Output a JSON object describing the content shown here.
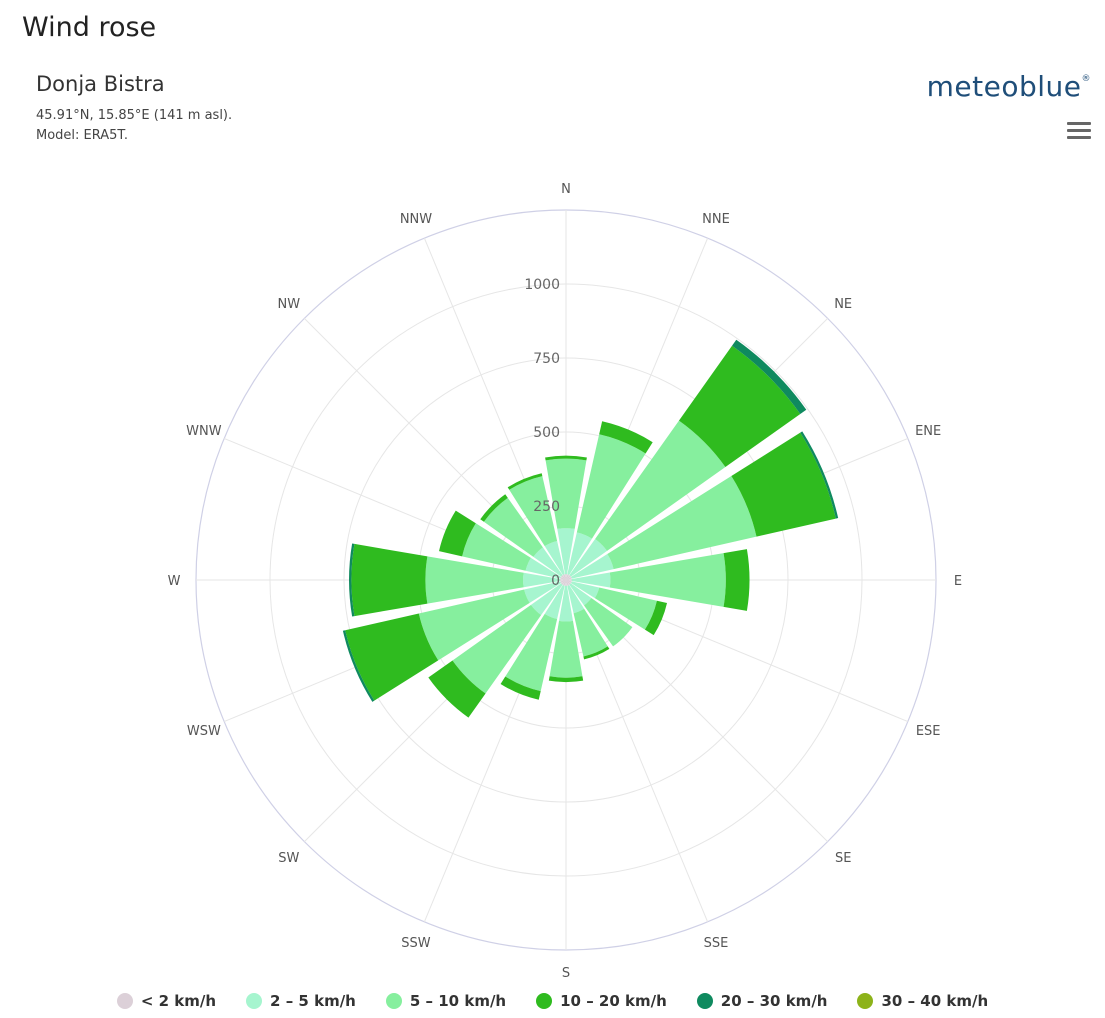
{
  "page_title": "Wind rose",
  "location": {
    "name": "Donja Bistra",
    "coords": "45.91°N, 15.85°E (141 m asl).",
    "model": "Model: ERA5T."
  },
  "brand": {
    "name": "meteoblue",
    "mark": "®"
  },
  "menu_icon": "hamburger-menu-icon",
  "chart_data": {
    "type": "wind-rose",
    "title": "",
    "radial_axis": {
      "min": 0,
      "max": 1250,
      "ticks": [
        0,
        250,
        500,
        750,
        1000
      ],
      "tick_labels": [
        "0",
        "250",
        "500",
        "750",
        "1000"
      ]
    },
    "directions": [
      "N",
      "NNE",
      "NE",
      "ENE",
      "E",
      "ESE",
      "SE",
      "SSE",
      "S",
      "SSW",
      "SW",
      "WSW",
      "W",
      "WNW",
      "NW",
      "NNW"
    ],
    "series": [
      {
        "name": "< 2 km/h",
        "color": "#dcd0d8",
        "values": [
          20,
          20,
          20,
          20,
          20,
          20,
          20,
          20,
          20,
          20,
          20,
          20,
          20,
          20,
          20,
          20
        ]
      },
      {
        "name": "2 – 5 km/h",
        "color": "#a6f5cf",
        "values": [
          155,
          145,
          150,
          145,
          130,
          95,
          85,
          95,
          120,
          115,
          125,
          125,
          125,
          120,
          115,
          115
        ]
      },
      {
        "name": "5 – 10 km/h",
        "color": "#86ef9e",
        "values": [
          235,
          340,
          490,
          495,
          390,
          200,
          170,
          150,
          190,
          250,
          325,
          365,
          330,
          220,
          205,
          225
        ]
      },
      {
        "name": "10 – 20 km/h",
        "color": "#2fbb1f",
        "values": [
          10,
          45,
          310,
          275,
          80,
          35,
          0,
          10,
          15,
          30,
          100,
          255,
          250,
          80,
          15,
          10
        ]
      },
      {
        "name": "20 – 30 km/h",
        "color": "#0f8a5f",
        "values": [
          0,
          0,
          25,
          8,
          0,
          0,
          0,
          0,
          0,
          0,
          0,
          8,
          8,
          0,
          0,
          0
        ]
      },
      {
        "name": "30 – 40 km/h",
        "color": "#8db31a",
        "values": [
          0,
          0,
          0,
          0,
          0,
          0,
          0,
          0,
          0,
          0,
          0,
          0,
          0,
          0,
          0,
          0
        ]
      }
    ],
    "grid": true,
    "legend_position": "bottom"
  }
}
